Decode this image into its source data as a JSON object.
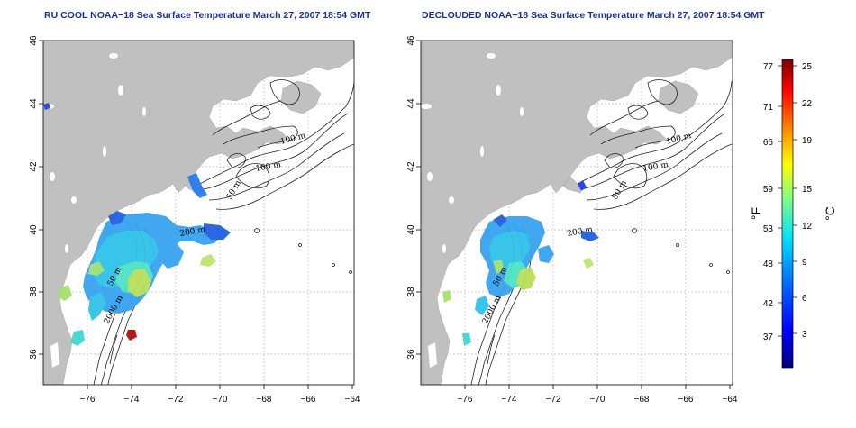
{
  "panels": {
    "left": {
      "title": "RU COOL NOAA−18 Sea Surface Temperature March 27, 2007 18:54 GMT"
    },
    "right": {
      "title": "DECLOUDED NOAA−18 Sea Surface Temperature March 27, 2007 18:54 GMT"
    }
  },
  "axes": {
    "x_ticks": [
      "−76",
      "−74",
      "−72",
      "−70",
      "−68",
      "−66",
      "−64"
    ],
    "y_ticks": [
      "46",
      "44",
      "42",
      "40",
      "38",
      "36"
    ]
  },
  "contours": {
    "left": [
      "100 m",
      "100 m",
      "50 m",
      "200 m",
      "50 m",
      "2000 m"
    ],
    "right": [
      "100 m",
      "100 m",
      "50 m",
      "200 m",
      "50 m",
      "2000 m"
    ]
  },
  "colorbar": {
    "unit_f": "°F",
    "unit_c": "°C",
    "f_labels": [
      "77",
      "71",
      "66",
      "59",
      "53",
      "48",
      "42",
      "37"
    ],
    "c_labels": [
      "25",
      "22",
      "19",
      "15",
      "12",
      "9",
      "6",
      "3"
    ]
  },
  "colors": {
    "title": "#1c2f9c",
    "land": "#c0c0c0",
    "ocean": "#ffffff",
    "grid": "#bbbbbb"
  }
}
